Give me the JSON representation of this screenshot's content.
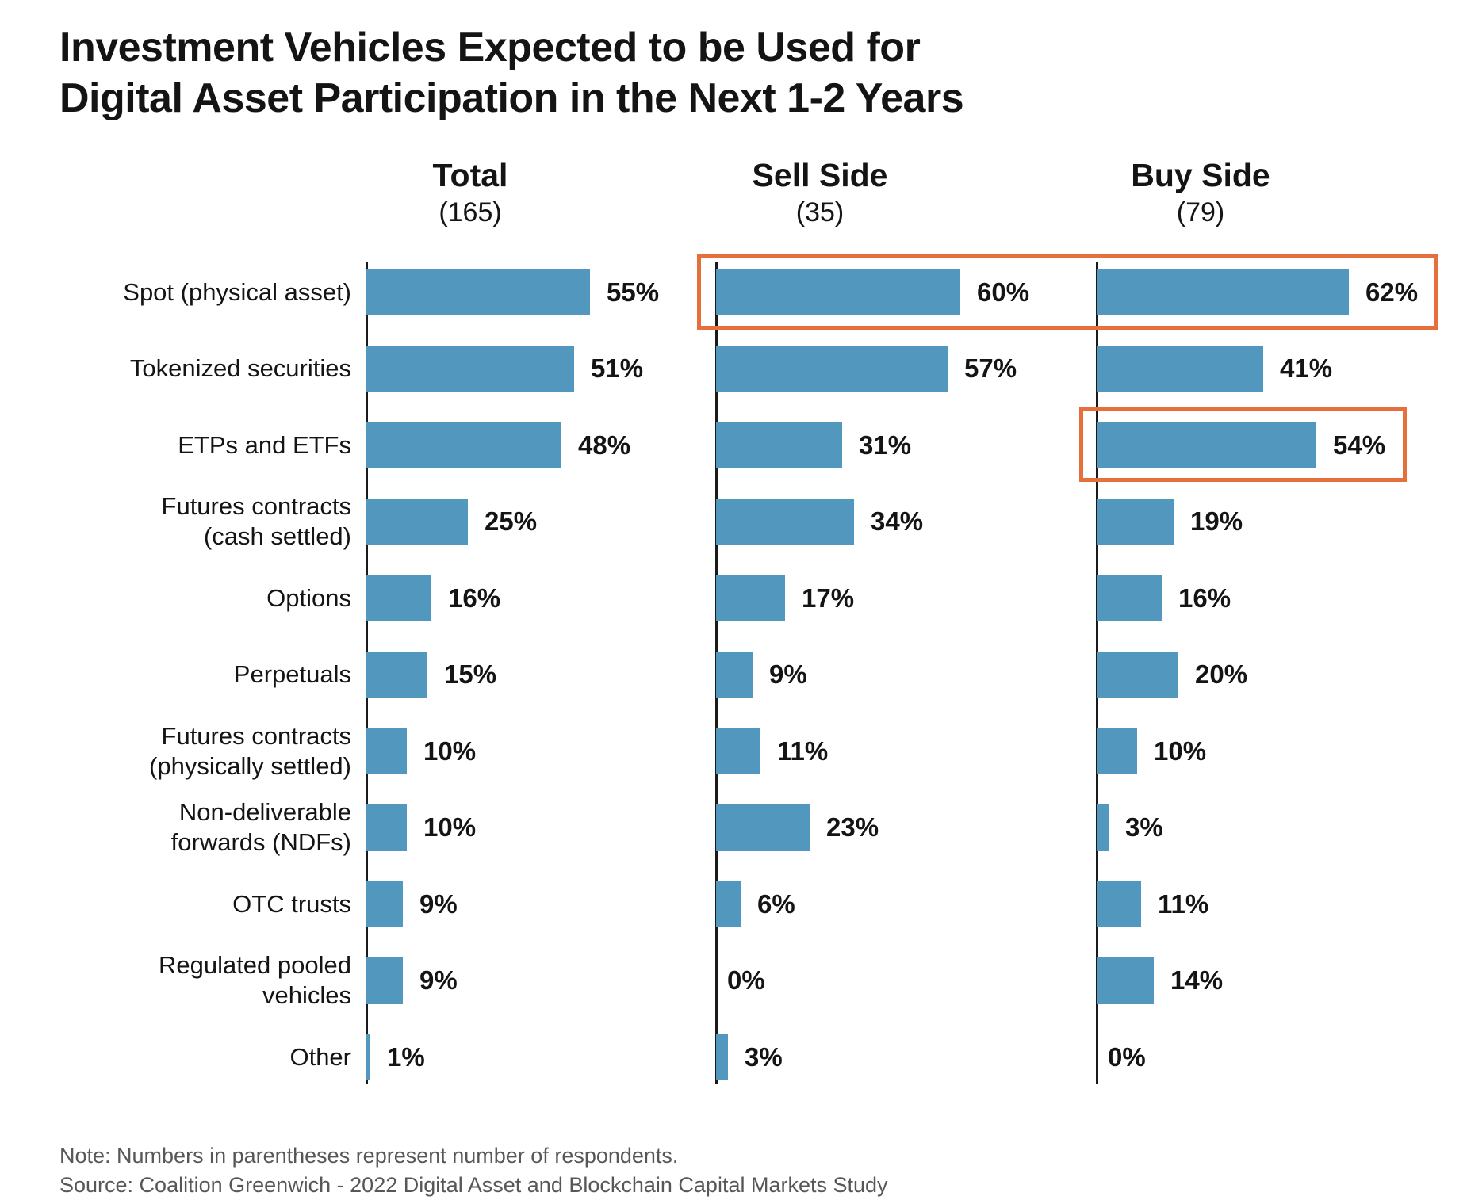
{
  "title_lines": [
    "Investment Vehicles Expected to be Used for",
    "Digital Asset Participation in the Next 1-2 Years"
  ],
  "note": "Note: Numbers in parentheses represent number of respondents.",
  "source": "Source: Coalition Greenwich - 2022 Digital Asset and Blockchain Capital Markets Study",
  "colors": {
    "bar": "#5297be",
    "highlight": "#e5703c",
    "axis": "#1a1a1a",
    "text": "#141414",
    "muted": "#575757"
  },
  "chart_data": {
    "type": "bar",
    "orientation": "horizontal",
    "unit": "percent",
    "grid": false,
    "columns": [
      {
        "name": "Total",
        "count": "(165)"
      },
      {
        "name": "Sell Side",
        "count": "(35)"
      },
      {
        "name": "Buy Side",
        "count": "(79)"
      }
    ],
    "categories": [
      "Spot (physical asset)",
      "Tokenized securities",
      "ETPs and ETFs",
      "Futures contracts (cash settled)",
      "Options",
      "Perpetuals",
      "Futures contracts (physically settled)",
      "Non-deliverable forwards (NDFs)",
      "OTC trusts",
      "Regulated pooled vehicles",
      "Other"
    ],
    "category_label_lines": [
      [
        "Spot (physical asset)"
      ],
      [
        "Tokenized securities"
      ],
      [
        "ETPs and ETFs"
      ],
      [
        "Futures contracts",
        "(cash settled)"
      ],
      [
        "Options"
      ],
      [
        "Perpetuals"
      ],
      [
        "Futures contracts",
        "(physically settled)"
      ],
      [
        "Non-deliverable",
        "forwards (NDFs)"
      ],
      [
        "OTC trusts"
      ],
      [
        "Regulated pooled",
        "vehicles"
      ],
      [
        "Other"
      ]
    ],
    "series": [
      {
        "name": "Total",
        "values": [
          55,
          51,
          48,
          25,
          16,
          15,
          10,
          10,
          9,
          9,
          1
        ],
        "labels": [
          "55%",
          "51%",
          "48%",
          "25%",
          "16%",
          "15%",
          "10%",
          "10%",
          "9%",
          "9%",
          "1%"
        ]
      },
      {
        "name": "Sell Side",
        "values": [
          60,
          57,
          31,
          34,
          17,
          9,
          11,
          23,
          6,
          0,
          3
        ],
        "labels": [
          "60%",
          "57%",
          "31%",
          "34%",
          "17%",
          "9%",
          "11%",
          "23%",
          "6%",
          "0%",
          "3%"
        ]
      },
      {
        "name": "Buy Side",
        "values": [
          62,
          41,
          54,
          19,
          16,
          20,
          10,
          3,
          11,
          14,
          0
        ],
        "labels": [
          "62%",
          "41%",
          "54%",
          "19%",
          "16%",
          "20%",
          "10%",
          "3%",
          "11%",
          "14%",
          "0%"
        ]
      }
    ],
    "highlights": [
      {
        "category": "Spot (physical asset)",
        "columns": [
          "Sell Side",
          "Buy Side"
        ],
        "values": [
          "60%",
          "62%"
        ]
      },
      {
        "category": "ETPs and ETFs",
        "columns": [
          "Buy Side"
        ],
        "values": [
          "54%"
        ]
      }
    ]
  }
}
